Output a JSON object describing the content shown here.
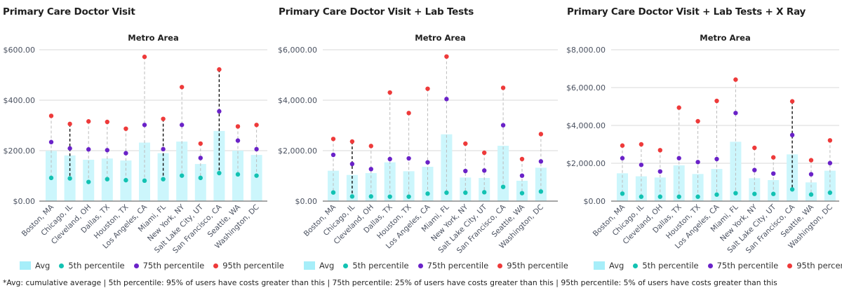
{
  "footnote": "*Avg: cumulative average | 5th percentile: 95% of users have costs greater than this | 75th percentile: 25% of users have costs greater than this | 95th percentile: 5% of users have costs greater than this",
  "legend": {
    "avg": "Avg",
    "p5": "5th percentile",
    "p75": "75th percentile",
    "p95": "95th percentile"
  },
  "colors": {
    "bar": "#ccf6fc",
    "legend_bar": "#a6eef9",
    "p5": "#12c2b2",
    "p75": "#6a22c8",
    "p95": "#ee3a3a",
    "stem": "#bbbbbb",
    "stem_highlight": "#111111",
    "grid": "#ececec",
    "axis": "#888888",
    "tick_text": "#4a5160"
  },
  "chart_data": [
    {
      "type": "bar",
      "title": "Primary Care Doctor Visit",
      "subtitle": "Metro Area",
      "xlabel": "",
      "ylabel": "",
      "ylim": [
        0,
        600
      ],
      "yticks": [
        0,
        200,
        400,
        600
      ],
      "ytick_labels": [
        "$0.00",
        "$200.00",
        "$400.00",
        "$600.00"
      ],
      "grid": true,
      "legend_position": "bottom",
      "categories": [
        "Boston, MA",
        "Chicago, IL",
        "Cleveland, OH",
        "Dallas, TX",
        "Houston, TX",
        "Los Angeles, CA",
        "Miami, FL",
        "New York, NY",
        "Salt Lake City, UT",
        "San Francisco, CA",
        "Seattle, WA",
        "Washington, DC"
      ],
      "highlighted": [
        "Chicago, IL",
        "Miami, FL",
        "San Francisco, CA"
      ],
      "series": [
        {
          "name": "Avg",
          "kind": "bar",
          "values": [
            199,
            181,
            164,
            169,
            161,
            232,
            190,
            236,
            147,
            278,
            200,
            183
          ]
        },
        {
          "name": "5th percentile",
          "kind": "dot",
          "values": [
            92,
            90,
            76,
            87,
            83,
            81,
            87,
            101,
            92,
            111,
            106,
            101
          ]
        },
        {
          "name": "75th percentile",
          "kind": "dot",
          "values": [
            234,
            209,
            205,
            202,
            190,
            302,
            206,
            302,
            171,
            356,
            240,
            206
          ]
        },
        {
          "name": "95th percentile",
          "kind": "dot",
          "values": [
            338,
            306,
            316,
            314,
            287,
            572,
            326,
            452,
            228,
            522,
            296,
            302
          ]
        }
      ]
    },
    {
      "type": "bar",
      "title": "Primary Care Doctor Visit + Lab Tests",
      "subtitle": "Metro Area",
      "xlabel": "",
      "ylabel": "",
      "ylim": [
        0,
        6000
      ],
      "yticks": [
        0,
        2000,
        4000,
        6000
      ],
      "ytick_labels": [
        "$0.00",
        "$2,000.00",
        "$4,000.00",
        "$6,000.00"
      ],
      "grid": true,
      "legend_position": "bottom",
      "categories": [
        "Boston, MA",
        "Chicago, IL",
        "Cleveland, OH",
        "Dallas, TX",
        "Houston, TX",
        "Los Angeles, CA",
        "Miami, FL",
        "New York, NY",
        "Salt Lake City, UT",
        "San Francisco, CA",
        "Seattle, WA",
        "Washington, DC"
      ],
      "highlighted": [
        "Chicago, IL"
      ],
      "series": [
        {
          "name": "Avg",
          "kind": "bar",
          "values": [
            1203,
            1037,
            1111,
            1537,
            1185,
            1361,
            2648,
            935,
            917,
            2194,
            806,
            1324
          ]
        },
        {
          "name": "5th percentile",
          "kind": "dot",
          "values": [
            342,
            185,
            185,
            176,
            176,
            296,
            333,
            333,
            352,
            564,
            315,
            380
          ]
        },
        {
          "name": "75th percentile",
          "kind": "dot",
          "values": [
            1833,
            1472,
            1269,
            1667,
            1694,
            1537,
            4046,
            1194,
            1213,
            3009,
            1009,
            1574
          ]
        },
        {
          "name": "95th percentile",
          "kind": "dot",
          "values": [
            2464,
            2361,
            2185,
            4305,
            3491,
            4454,
            5731,
            2278,
            1917,
            4491,
            1667,
            2657
          ]
        }
      ]
    },
    {
      "type": "bar",
      "title": "Primary Care Doctor Visit  + Lab Tests + X Ray",
      "subtitle": "Metro Area",
      "xlabel": "",
      "ylabel": "",
      "ylim": [
        0,
        8000
      ],
      "yticks": [
        0,
        2000,
        4000,
        6000,
        8000
      ],
      "ytick_labels": [
        "$0.00",
        "$2,000.00",
        "$4,000.00",
        "$6,000.00",
        "$8,000.00"
      ],
      "grid": true,
      "legend_position": "bottom",
      "categories": [
        "Boston, MA",
        "Chicago, IL",
        "Cleveland, OH",
        "Dallas, TX",
        "Houston, TX",
        "Los Angeles, CA",
        "Miami, FL",
        "New York, NY",
        "Salt Lake City, UT",
        "San Francisco, CA",
        "Seattle, WA",
        "Washington, DC"
      ],
      "highlighted": [
        "San Francisco, CA"
      ],
      "series": [
        {
          "name": "Avg",
          "kind": "bar",
          "values": [
            1470,
            1311,
            1248,
            1889,
            1433,
            1700,
            3137,
            1211,
            1111,
            2470,
            989,
            1607
          ]
        },
        {
          "name": "5th percentile",
          "kind": "dot",
          "values": [
            396,
            233,
            233,
            233,
            233,
            344,
            419,
            381,
            381,
            619,
            348,
            444
          ]
        },
        {
          "name": "75th percentile",
          "kind": "dot",
          "values": [
            2270,
            1915,
            1567,
            2270,
            2063,
            2222,
            4656,
            1641,
            1456,
            3493,
            1419,
            2011
          ]
        },
        {
          "name": "95th percentile",
          "kind": "dot",
          "values": [
            2937,
            3000,
            2692,
            4941,
            4223,
            5296,
            6422,
            2815,
            2311,
            5274,
            2163,
            3211
          ]
        }
      ]
    }
  ]
}
